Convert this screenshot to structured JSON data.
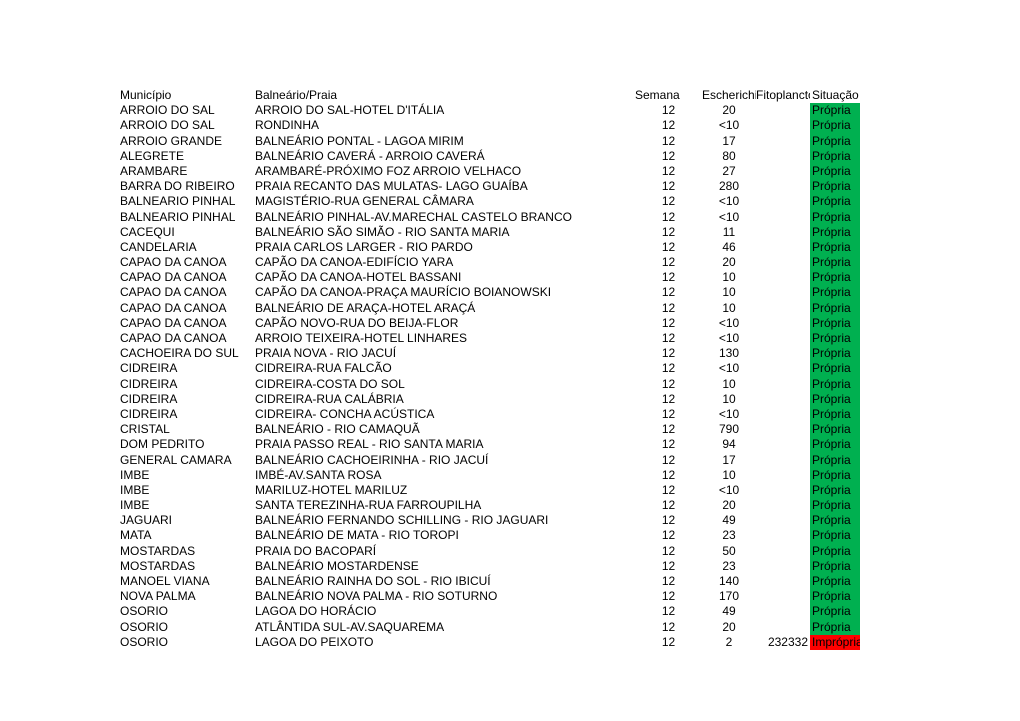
{
  "headers": {
    "municipio": "Município",
    "praia": "Balneário/Praia",
    "semana": "Semana",
    "escherichia": "Escherichia",
    "fitoplancto": "Fitoplancto",
    "situacao": "Situação"
  },
  "status_colors": {
    "Própria": "#00b050",
    "Imprópria": "#ff0000"
  },
  "rows": [
    {
      "municipio": "ARROIO DO SAL",
      "praia": "ARROIO DO SAL-HOTEL D'ITÁLIA",
      "semana": "12",
      "escherichia": "20",
      "fito": "",
      "situacao": "Própria"
    },
    {
      "municipio": "ARROIO DO SAL",
      "praia": "RONDINHA",
      "semana": "12",
      "escherichia": "<10",
      "fito": "",
      "situacao": "Própria"
    },
    {
      "municipio": "ARROIO GRANDE",
      "praia": "BALNEÁRIO PONTAL - LAGOA MIRIM",
      "semana": "12",
      "escherichia": "17",
      "fito": "",
      "situacao": "Própria"
    },
    {
      "municipio": "ALEGRETE",
      "praia": "BALNEÁRIO CAVERÁ - ARROIO CAVERÁ",
      "semana": "12",
      "escherichia": "80",
      "fito": "",
      "situacao": "Própria"
    },
    {
      "municipio": "ARAMBARE",
      "praia": "ARAMBARÉ-PRÓXIMO FOZ ARROIO VELHACO",
      "semana": "12",
      "escherichia": "27",
      "fito": "",
      "situacao": "Própria"
    },
    {
      "municipio": "BARRA DO RIBEIRO",
      "praia": "PRAIA RECANTO DAS MULATAS- LAGO GUAÍBA",
      "semana": "12",
      "escherichia": "280",
      "fito": "",
      "situacao": "Própria"
    },
    {
      "municipio": "BALNEARIO PINHAL",
      "praia": "MAGISTÉRIO-RUA GENERAL CÂMARA",
      "semana": "12",
      "escherichia": "<10",
      "fito": "",
      "situacao": "Própria"
    },
    {
      "municipio": "BALNEARIO PINHAL",
      "praia": "BALNEÁRIO PINHAL-AV.MARECHAL CASTELO BRANCO",
      "semana": "12",
      "escherichia": "<10",
      "fito": "",
      "situacao": "Própria"
    },
    {
      "municipio": "CACEQUI",
      "praia": "BALNEÁRIO SÃO SIMÃO - RIO SANTA MARIA",
      "semana": "12",
      "escherichia": "11",
      "fito": "",
      "situacao": "Própria"
    },
    {
      "municipio": "CANDELARIA",
      "praia": "PRAIA CARLOS LARGER - RIO PARDO",
      "semana": "12",
      "escherichia": "46",
      "fito": "",
      "situacao": "Própria"
    },
    {
      "municipio": "CAPAO DA CANOA",
      "praia": "CAPÃO DA CANOA-EDIFÍCIO YARA",
      "semana": "12",
      "escherichia": "20",
      "fito": "",
      "situacao": "Própria"
    },
    {
      "municipio": "CAPAO DA CANOA",
      "praia": "CAPÃO DA CANOA-HOTEL BASSANI",
      "semana": "12",
      "escherichia": "10",
      "fito": "",
      "situacao": "Própria"
    },
    {
      "municipio": "CAPAO DA CANOA",
      "praia": "CAPÃO DA CANOA-PRAÇA MAURÍCIO BOIANOWSKI",
      "semana": "12",
      "escherichia": "10",
      "fito": "",
      "situacao": "Própria"
    },
    {
      "municipio": "CAPAO DA CANOA",
      "praia": " BALNEÁRIO DE ARAÇA-HOTEL ARAÇÁ",
      "semana": "12",
      "escherichia": "10",
      "fito": "",
      "situacao": "Própria"
    },
    {
      "municipio": "CAPAO DA CANOA",
      "praia": "CAPÃO NOVO-RUA DO BEIJA-FLOR",
      "semana": "12",
      "escherichia": "<10",
      "fito": "",
      "situacao": "Própria"
    },
    {
      "municipio": "CAPAO DA CANOA",
      "praia": "ARROIO TEIXEIRA-HOTEL LINHARES",
      "semana": "12",
      "escherichia": "<10",
      "fito": "",
      "situacao": "Própria"
    },
    {
      "municipio": "CACHOEIRA DO SUL",
      "praia": "PRAIA NOVA - RIO JACUÍ",
      "semana": "12",
      "escherichia": "130",
      "fito": "",
      "situacao": "Própria"
    },
    {
      "municipio": "CIDREIRA",
      "praia": "CIDREIRA-RUA FALCÃO",
      "semana": "12",
      "escherichia": "<10",
      "fito": "",
      "situacao": "Própria"
    },
    {
      "municipio": "CIDREIRA",
      "praia": "CIDREIRA-COSTA DO SOL",
      "semana": "12",
      "escherichia": "10",
      "fito": "",
      "situacao": "Própria"
    },
    {
      "municipio": "CIDREIRA",
      "praia": "CIDREIRA-RUA CALÁBRIA",
      "semana": "12",
      "escherichia": "10",
      "fito": "",
      "situacao": "Própria"
    },
    {
      "municipio": "CIDREIRA",
      "praia": "CIDREIRA- CONCHA ACÚSTICA",
      "semana": "12",
      "escherichia": "<10",
      "fito": "",
      "situacao": "Própria"
    },
    {
      "municipio": "CRISTAL",
      "praia": "BALNEÁRIO -  RIO CAMAQUÃ",
      "semana": "12",
      "escherichia": "790",
      "fito": "",
      "situacao": "Própria"
    },
    {
      "municipio": "DOM PEDRITO",
      "praia": "PRAIA PASSO REAL - RIO SANTA MARIA",
      "semana": "12",
      "escherichia": "94",
      "fito": "",
      "situacao": "Própria"
    },
    {
      "municipio": "GENERAL CAMARA",
      "praia": "BALNEÁRIO CACHOEIRINHA - RIO JACUÍ",
      "semana": "12",
      "escherichia": "17",
      "fito": "",
      "situacao": "Própria"
    },
    {
      "municipio": "IMBE",
      "praia": "IMBÉ-AV.SANTA ROSA",
      "semana": "12",
      "escherichia": "10",
      "fito": "",
      "situacao": "Própria"
    },
    {
      "municipio": "IMBE",
      "praia": "MARILUZ-HOTEL MARILUZ",
      "semana": "12",
      "escherichia": "<10",
      "fito": "",
      "situacao": "Própria"
    },
    {
      "municipio": "IMBE",
      "praia": "SANTA TEREZINHA-RUA FARROUPILHA",
      "semana": "12",
      "escherichia": "20",
      "fito": "",
      "situacao": "Própria"
    },
    {
      "municipio": "JAGUARI",
      "praia": "BALNEÁRIO FERNANDO SCHILLING  - RIO JAGUARI",
      "semana": "12",
      "escherichia": "49",
      "fito": "",
      "situacao": "Própria"
    },
    {
      "municipio": "MATA",
      "praia": "BALNEÁRIO DE MATA - RIO TOROPI",
      "semana": "12",
      "escherichia": "23",
      "fito": "",
      "situacao": "Própria"
    },
    {
      "municipio": "MOSTARDAS",
      "praia": "PRAIA DO BACOPARÍ",
      "semana": "12",
      "escherichia": "50",
      "fito": "",
      "situacao": "Própria"
    },
    {
      "municipio": "MOSTARDAS",
      "praia": "BALNEÁRIO MOSTARDENSE",
      "semana": "12",
      "escherichia": "23",
      "fito": "",
      "situacao": "Própria"
    },
    {
      "municipio": "MANOEL VIANA",
      "praia": "BALNEÁRIO RAINHA DO SOL - RIO IBICUÍ",
      "semana": "12",
      "escherichia": "140",
      "fito": "",
      "situacao": "Própria"
    },
    {
      "municipio": "NOVA PALMA",
      "praia": "BALNEÁRIO NOVA PALMA - RIO SOTURNO",
      "semana": "12",
      "escherichia": "170",
      "fito": "",
      "situacao": "Própria"
    },
    {
      "municipio": "OSORIO",
      "praia": "LAGOA DO HORÁCIO",
      "semana": "12",
      "escherichia": "49",
      "fito": "",
      "situacao": "Própria"
    },
    {
      "municipio": "OSORIO",
      "praia": "ATLÂNTIDA SUL-AV.SAQUAREMA",
      "semana": "12",
      "escherichia": "20",
      "fito": "",
      "situacao": "Própria"
    },
    {
      "municipio": "OSORIO",
      "praia": "LAGOA DO PEIXOTO",
      "semana": "12",
      "escherichia": "2",
      "fito": "232332",
      "situacao": "Imprópria"
    }
  ]
}
